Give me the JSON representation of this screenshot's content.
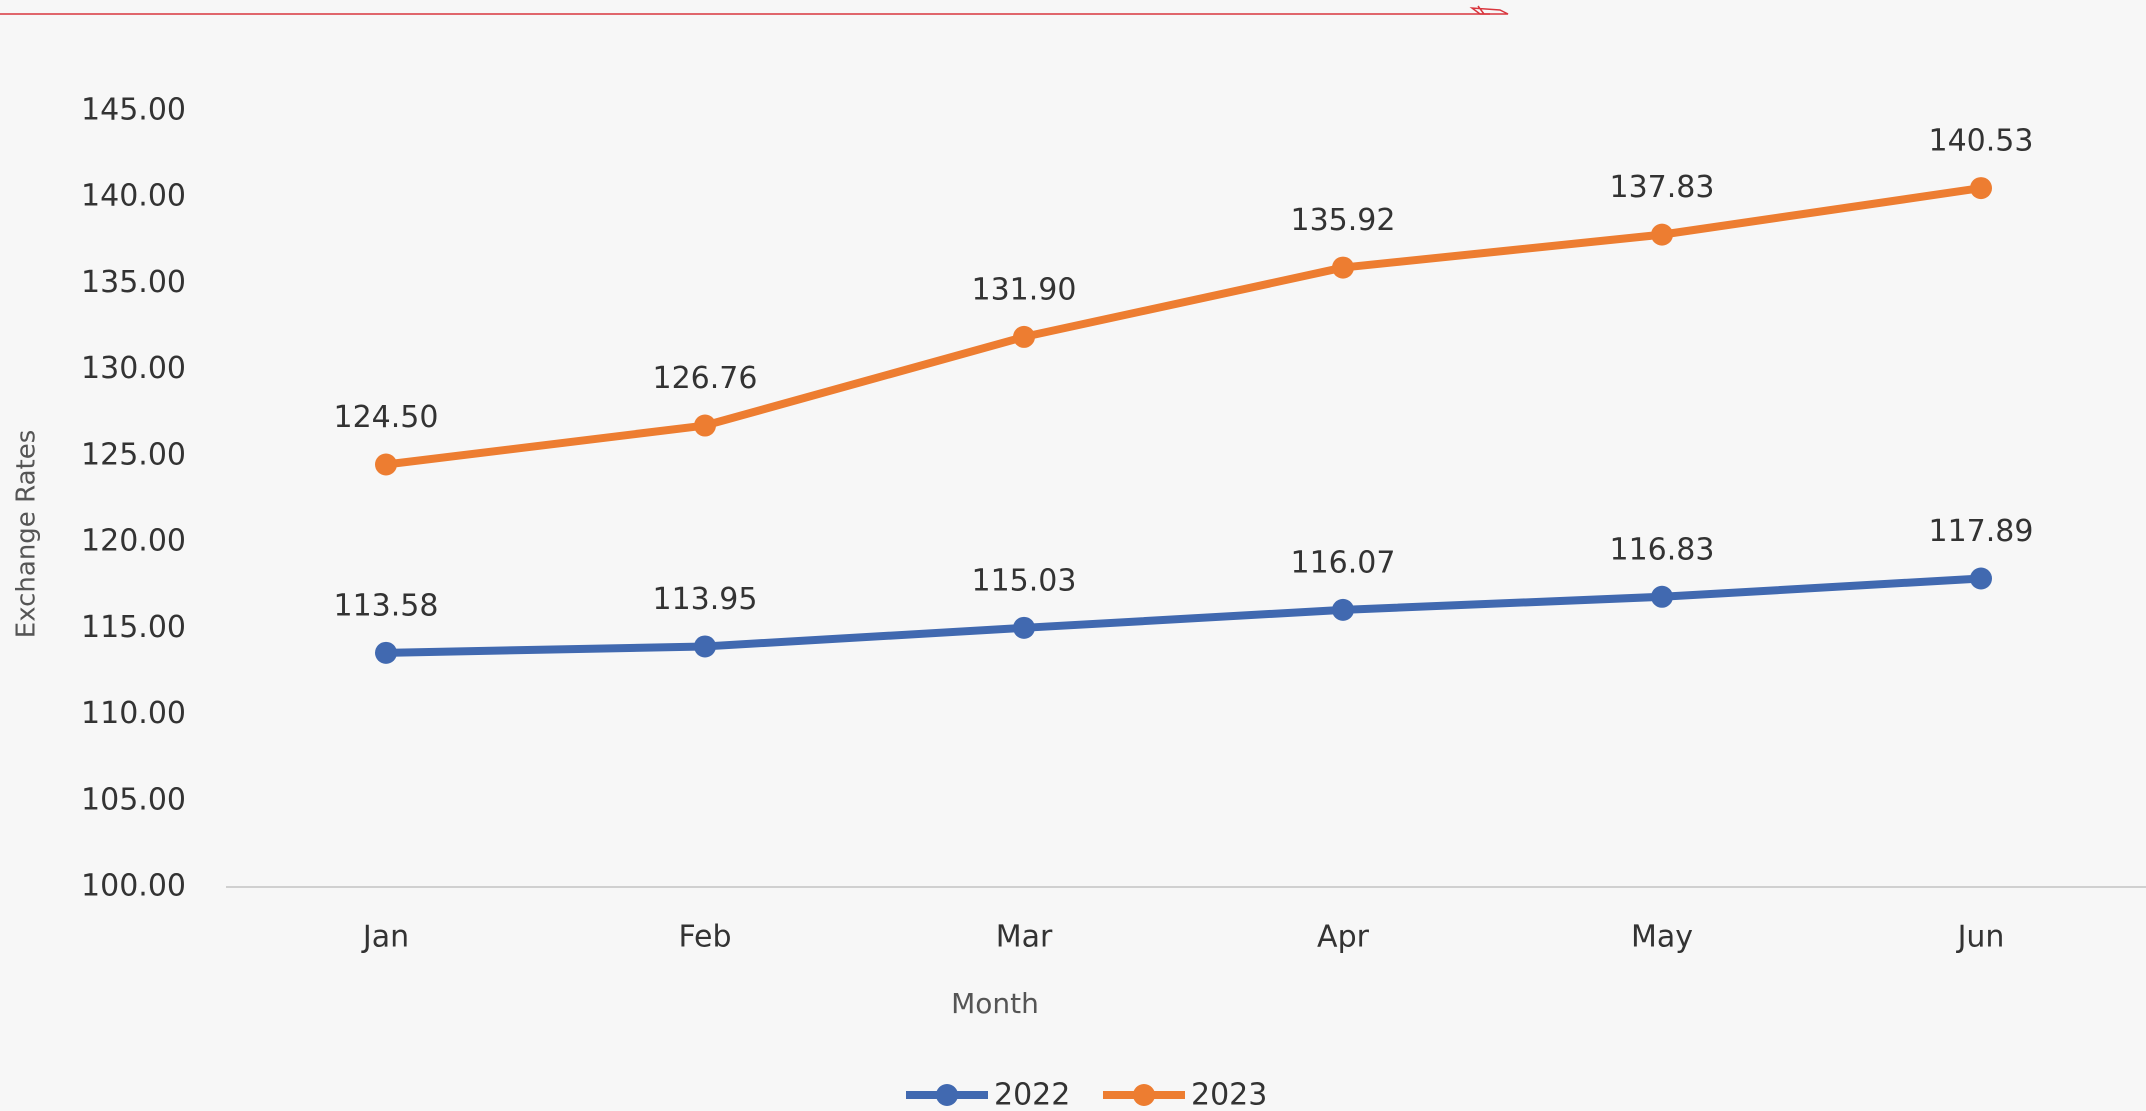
{
  "chart_data": {
    "type": "line",
    "x_label": "Month",
    "y_label": "Exchange Rates",
    "categories": [
      "Jan",
      "Feb",
      "Mar",
      "Apr",
      "May",
      "Jun"
    ],
    "series": [
      {
        "name": "2022",
        "color": "#4169b0",
        "values": [
          113.58,
          113.95,
          115.03,
          116.07,
          116.83,
          117.89
        ],
        "value_labels": [
          "113.58",
          "113.95",
          "115.03",
          "116.07",
          "116.83",
          "117.89"
        ]
      },
      {
        "name": "2023",
        "color": "#ed7d31",
        "values": [
          124.5,
          126.76,
          131.9,
          135.92,
          137.83,
          140.53
        ],
        "value_labels": [
          "124.50",
          "126.76",
          "131.90",
          "135.92",
          "137.83",
          "140.53"
        ]
      }
    ],
    "ylim": [
      100,
      145
    ],
    "yticks": [
      {
        "value": 100,
        "label": "100.00"
      },
      {
        "value": 105,
        "label": "105.00"
      },
      {
        "value": 110,
        "label": "110.00"
      },
      {
        "value": 115,
        "label": "115.00"
      },
      {
        "value": 120,
        "label": "120.00"
      },
      {
        "value": 125,
        "label": "125.00"
      },
      {
        "value": 130,
        "label": "130.00"
      },
      {
        "value": 135,
        "label": "135.00"
      },
      {
        "value": 140,
        "label": "140.00"
      },
      {
        "value": 145,
        "label": "145.00"
      }
    ],
    "grid": false,
    "legend": "bottom"
  }
}
